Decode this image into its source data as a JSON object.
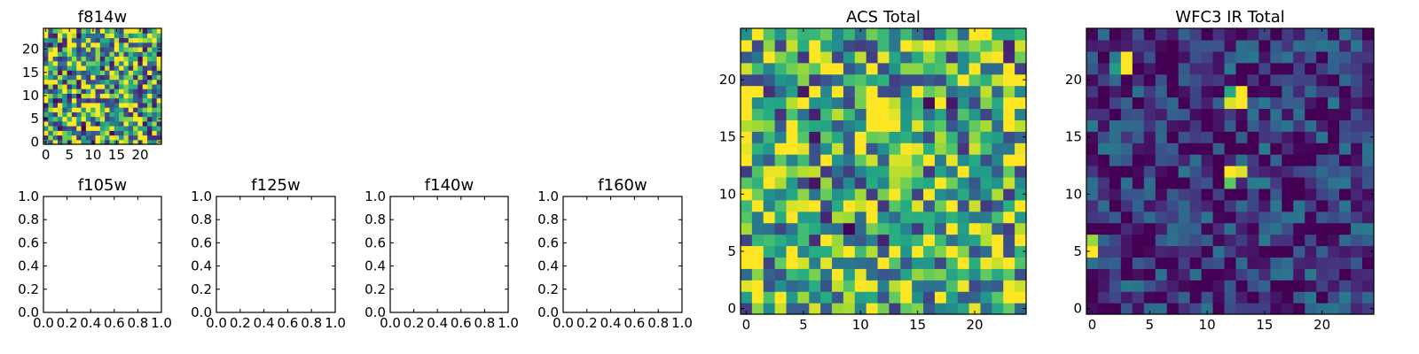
{
  "chart_data": [
    {
      "type": "heatmap",
      "title": "f814w",
      "xlim": [
        -0.5,
        24.5
      ],
      "ylim": [
        -0.5,
        24.5
      ],
      "xticks": [
        "0",
        "5",
        "10",
        "15",
        "20"
      ],
      "yticks": [
        "0",
        "5",
        "10",
        "15",
        "20"
      ],
      "grid_size": [
        25,
        25
      ],
      "colormap": "viridis",
      "value_range": [
        0,
        1
      ],
      "seed": 814,
      "bias": 0.62,
      "spread": 0.55,
      "hotspots": []
    },
    {
      "type": "line",
      "title": "f105w",
      "xlim": [
        0,
        1
      ],
      "ylim": [
        0,
        1
      ],
      "xticks": [
        "0.0",
        "0.2",
        "0.4",
        "0.6",
        "0.8",
        "1.0"
      ],
      "yticks": [
        "0.0",
        "0.2",
        "0.4",
        "0.6",
        "0.8",
        "1.0"
      ],
      "series": []
    },
    {
      "type": "line",
      "title": "f125w",
      "xlim": [
        0,
        1
      ],
      "ylim": [
        0,
        1
      ],
      "xticks": [
        "0.0",
        "0.2",
        "0.4",
        "0.6",
        "0.8",
        "1.0"
      ],
      "yticks": [
        "0.0",
        "0.2",
        "0.4",
        "0.6",
        "0.8",
        "1.0"
      ],
      "series": []
    },
    {
      "type": "line",
      "title": "f140w",
      "xlim": [
        0,
        1
      ],
      "ylim": [
        0,
        1
      ],
      "xticks": [
        "0.0",
        "0.2",
        "0.4",
        "0.6",
        "0.8",
        "1.0"
      ],
      "yticks": [
        "0.0",
        "0.2",
        "0.4",
        "0.6",
        "0.8",
        "1.0"
      ],
      "series": []
    },
    {
      "type": "line",
      "title": "f160w",
      "xlim": [
        0,
        1
      ],
      "ylim": [
        0,
        1
      ],
      "xticks": [
        "0.0",
        "0.2",
        "0.4",
        "0.6",
        "0.8",
        "1.0"
      ],
      "yticks": [
        "0.0",
        "0.2",
        "0.4",
        "0.6",
        "0.8",
        "1.0"
      ],
      "series": []
    },
    {
      "type": "heatmap",
      "title": "ACS Total",
      "xlim": [
        -0.5,
        24.5
      ],
      "ylim": [
        -0.5,
        24.5
      ],
      "xticks": [
        "0",
        "5",
        "10",
        "15",
        "20"
      ],
      "yticks": [
        "0",
        "5",
        "10",
        "15",
        "20"
      ],
      "grid_size": [
        25,
        25
      ],
      "colormap": "viridis",
      "value_range": [
        0,
        1
      ],
      "seed": 2024,
      "bias": 0.66,
      "spread": 0.5,
      "hotspots": []
    },
    {
      "type": "heatmap",
      "title": "WFC3 IR Total",
      "xlim": [
        -0.5,
        24.5
      ],
      "ylim": [
        -0.5,
        24.5
      ],
      "xticks": [
        "0",
        "5",
        "10",
        "15",
        "20"
      ],
      "yticks": [
        "0",
        "5",
        "10",
        "15",
        "20"
      ],
      "grid_size": [
        25,
        25
      ],
      "colormap": "viridis",
      "value_range": [
        0,
        1
      ],
      "seed": 31,
      "bias": 0.16,
      "spread": 0.26,
      "hotspots": [
        {
          "x": 3,
          "y": 21,
          "v": 1.0
        },
        {
          "x": 3,
          "y": 22,
          "v": 1.0
        },
        {
          "x": 12,
          "y": 18,
          "v": 0.95
        },
        {
          "x": 13,
          "y": 18,
          "v": 1.0
        },
        {
          "x": 13,
          "y": 19,
          "v": 1.0
        },
        {
          "x": 12,
          "y": 12,
          "v": 1.0
        },
        {
          "x": 13,
          "y": 12,
          "v": 0.95
        },
        {
          "x": 12,
          "y": 11,
          "v": 0.75
        },
        {
          "x": 0,
          "y": 5,
          "v": 1.0
        },
        {
          "x": 0,
          "y": 6,
          "v": 0.85
        },
        {
          "x": 2,
          "y": 21,
          "v": 0.55
        },
        {
          "x": 12,
          "y": 19,
          "v": 0.6
        }
      ]
    }
  ]
}
